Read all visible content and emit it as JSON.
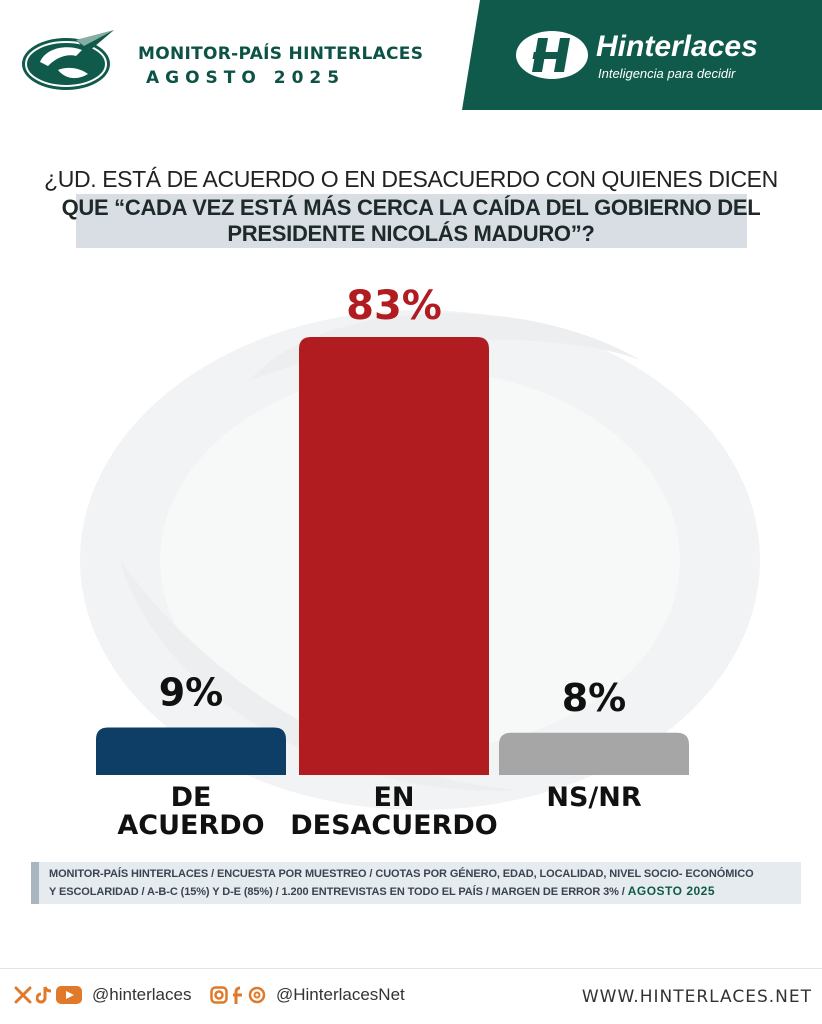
{
  "header": {
    "brand_title": "MONITOR-PAÍS HINTERLACES",
    "brand_date": "AGOSTO 2025",
    "company_name": "Hinterlaces",
    "company_tagline": "Inteligencia para decidir",
    "accent_color": "#0f5a4a"
  },
  "question": {
    "line1": "¿UD. ESTÁ DE ACUERDO O EN DESACUERDO CON QUIENES DICEN",
    "line2": "QUE “CADA VEZ ESTÁ MÁS CERCA LA CAÍDA DEL GOBIERNO DEL",
    "line3": "PRESIDENTE NICOLÁS MADURO”?"
  },
  "chart_data": {
    "type": "bar",
    "categories": [
      "DE ACUERDO",
      "EN DESACUERDO",
      "NS/NR"
    ],
    "category_lines": [
      [
        "DE",
        "ACUERDO"
      ],
      [
        "EN",
        "DESACUERDO"
      ],
      [
        "NS/NR"
      ]
    ],
    "values": [
      9,
      83,
      8
    ],
    "value_labels": [
      "9%",
      "83%",
      "8%"
    ],
    "colors": [
      "#0e3d66",
      "#b01c20",
      "#a6a6a6"
    ],
    "label_colors": [
      "#111111",
      "#b01c20",
      "#111111"
    ],
    "title": "",
    "xlabel": "",
    "ylabel": "",
    "ylim": [
      0,
      83
    ],
    "grid": false
  },
  "methodology": {
    "line1": "MONITOR-PAÍS HINTERLACES / ENCUESTA POR MUESTREO / CUOTAS POR GÉNERO, EDAD, LOCALIDAD,  NIVEL SOCIO- ECONÓMICO",
    "line2": "Y ESCOLARIDAD / A-B-C (15%) Y D-E (85%) / 1.200 ENTREVISTAS EN TODO EL PAÍS  / MARGEN DE ERROR 3% / ",
    "date": "AGOSTO 2025"
  },
  "footer": {
    "handle_left": "@hinterlaces",
    "handle_right": "@HinterlacesNet",
    "website": "WWW.HINTERLACES.NET",
    "icons_left": [
      "x-icon",
      "tiktok-icon",
      "youtube-icon"
    ],
    "icons_right": [
      "instagram-icon",
      "facebook-icon",
      "threads-icon"
    ]
  }
}
